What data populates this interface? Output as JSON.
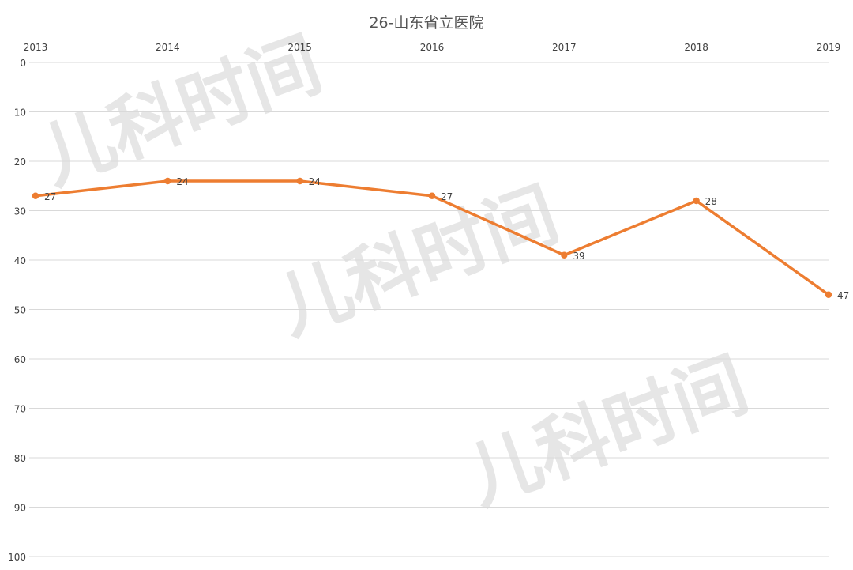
{
  "chart_data": {
    "type": "line",
    "title": "26-山东省立医院",
    "x": [
      "2013",
      "2014",
      "2015",
      "2016",
      "2017",
      "2018",
      "2019"
    ],
    "series": [
      {
        "values": [
          27,
          24,
          24,
          27,
          39,
          28,
          47
        ]
      }
    ],
    "y_ticks": [
      "0",
      "10",
      "20",
      "30",
      "40",
      "50",
      "60",
      "70",
      "80",
      "90",
      "100"
    ],
    "ylim": [
      0,
      100
    ],
    "y_axis_reversed": true,
    "x_axis_position": "top",
    "grid": true,
    "legend": "none",
    "data_labels": true,
    "colors": {
      "series": "#ED7D31",
      "grid": "#D9D9D9",
      "text": "#404040",
      "title": "#555555",
      "watermark": "#E6E6E6"
    },
    "watermark": "儿科时间"
  }
}
